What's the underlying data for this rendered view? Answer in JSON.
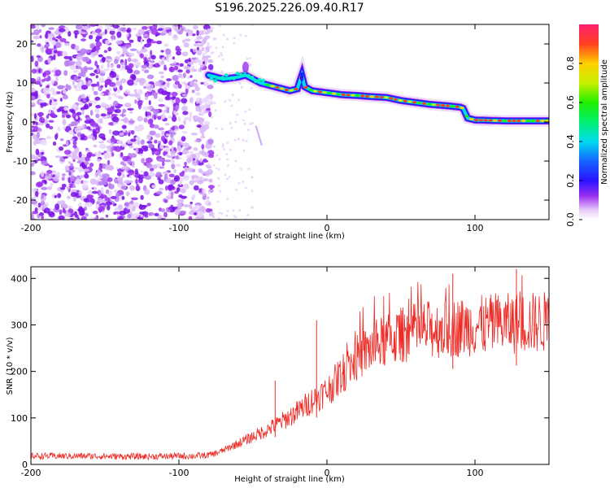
{
  "title": "S196.2025.226.09.40.R17",
  "chart_data": [
    {
      "type": "heatmap",
      "xlabel": "Height of straight line (km)",
      "ylabel": "Frequency (Hz)",
      "xlim": [
        -200,
        150
      ],
      "ylim": [
        -25,
        25
      ],
      "xticks": [
        -200,
        -100,
        0,
        100
      ],
      "xtick_labels": [
        "-200",
        "-100",
        "0",
        "100"
      ],
      "yticks": [
        -20,
        -10,
        0,
        10,
        20
      ],
      "ytick_labels": [
        "-20",
        "-10",
        "0",
        "10",
        "20"
      ],
      "colorbar": {
        "label": "Normalized spectral amplitude",
        "range": [
          0.0,
          1.0
        ],
        "ticks": [
          0.0,
          0.2,
          0.4,
          0.6,
          0.8
        ],
        "tick_labels": [
          "0.0",
          "0.2",
          "0.4",
          "0.6",
          "0.8"
        ]
      },
      "ridge": {
        "name": "spectral peak frequency",
        "x": [
          -80,
          -70,
          -60,
          -55,
          -50,
          -45,
          -40,
          -35,
          -30,
          -25,
          -20,
          -17,
          -15,
          -10,
          0,
          10,
          20,
          30,
          40,
          50,
          60,
          70,
          80,
          90,
          92,
          95,
          100,
          110,
          120,
          130,
          140,
          150
        ],
        "y": [
          12,
          11,
          11.5,
          12,
          11,
          10,
          9.5,
          9,
          8.5,
          8,
          8.5,
          12,
          9,
          8,
          7.5,
          7,
          6.8,
          6.5,
          6.3,
          5.5,
          5,
          4.5,
          4.2,
          3.8,
          3.5,
          1,
          0.5,
          0.4,
          0.3,
          0.3,
          0.3,
          0.3
        ]
      },
      "noise_region": {
        "x_range": [
          -200,
          -78
        ],
        "y_range": [
          -25,
          25
        ]
      }
    },
    {
      "type": "line",
      "xlabel": "Height of straight line (km)",
      "ylabel": "SNR (10 * v/v)",
      "xlim": [
        -200,
        150
      ],
      "ylim": [
        0,
        425
      ],
      "xticks": [
        -200,
        -100,
        0,
        100
      ],
      "xtick_labels": [
        "-200",
        "-100",
        "0",
        "100"
      ],
      "yticks": [
        0,
        100,
        200,
        300,
        400
      ],
      "ytick_labels": [
        "0",
        "100",
        "200",
        "300",
        "400"
      ],
      "series": [
        {
          "name": "SNR",
          "color": "#ee2a24",
          "x": [
            -200,
            -180,
            -160,
            -140,
            -120,
            -100,
            -90,
            -80,
            -75,
            -70,
            -65,
            -60,
            -55,
            -50,
            -45,
            -40,
            -35,
            -30,
            -25,
            -20,
            -15,
            -10,
            -5,
            0,
            5,
            10,
            15,
            20,
            25,
            30,
            35,
            40,
            45,
            50,
            55,
            60,
            65,
            70,
            80,
            90,
            100,
            110,
            120,
            130,
            140,
            150
          ],
          "values": [
            18,
            18,
            18,
            17,
            17,
            18,
            18,
            20,
            24,
            30,
            38,
            45,
            52,
            60,
            67,
            75,
            84,
            93,
            103,
            113,
            125,
            138,
            148,
            158,
            175,
            195,
            212,
            228,
            240,
            250,
            258,
            265,
            272,
            278,
            282,
            286,
            288,
            290,
            292,
            295,
            298,
            300,
            302,
            304,
            305,
            306
          ],
          "spikes": [
            {
              "x": -7,
              "value": 310
            },
            {
              "x": -35,
              "value": 180
            },
            {
              "x": 85,
              "value": 410
            },
            {
              "x": 128,
              "value": 420
            }
          ]
        }
      ]
    }
  ]
}
